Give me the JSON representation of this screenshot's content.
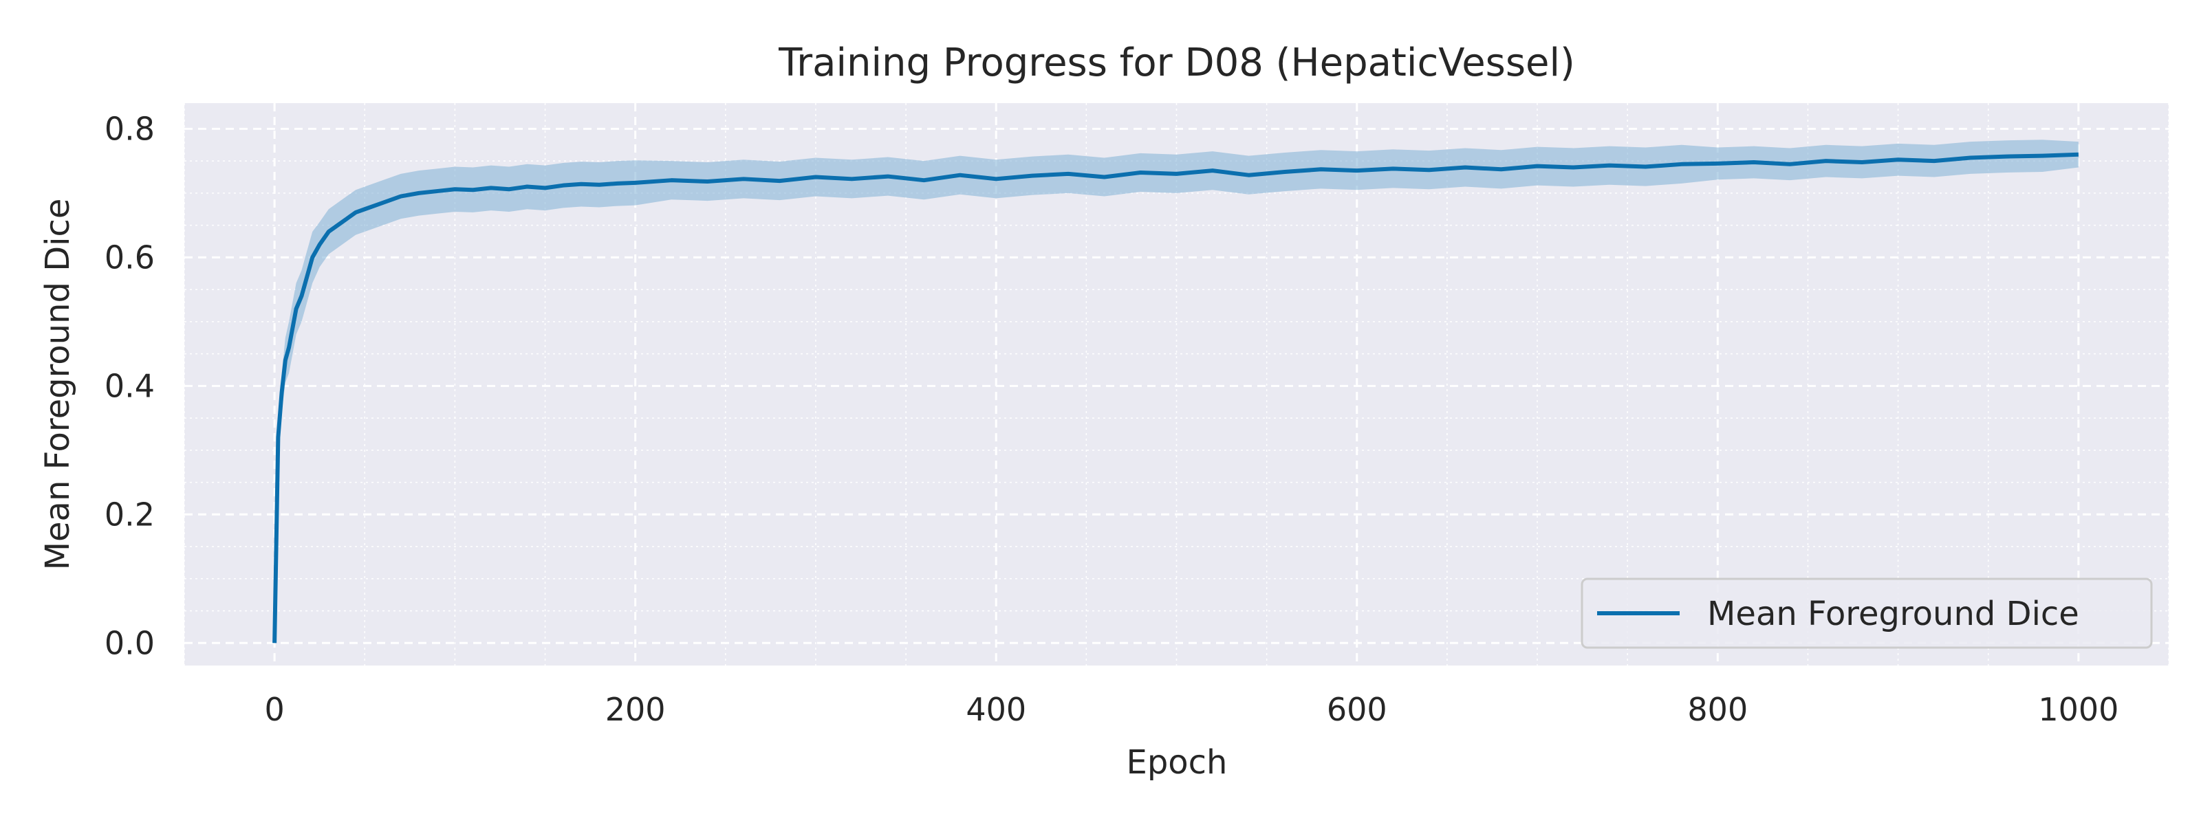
{
  "chart_data": {
    "type": "line",
    "title": "Training Progress for D08 (HepaticVessel)",
    "xlabel": "Epoch",
    "ylabel": "Mean Foreground Dice",
    "xlim": [
      -50,
      1050
    ],
    "ylim": [
      -0.035,
      0.84
    ],
    "xticks": [
      0,
      200,
      400,
      600,
      800,
      1000
    ],
    "xtick_labels": [
      "0",
      "200",
      "400",
      "600",
      "800",
      "1000"
    ],
    "yticks": [
      0.0,
      0.2,
      0.4,
      0.6,
      0.8
    ],
    "ytick_labels": [
      "0.0",
      "0.2",
      "0.4",
      "0.6",
      "0.8"
    ],
    "grid": true,
    "minor_grid": true,
    "legend_position": "lower-right",
    "series": [
      {
        "name": "Mean Foreground Dice",
        "color": "#0b6fae",
        "band_color": "#7fb1d6",
        "x": [
          0,
          2,
          4,
          6,
          8,
          10,
          12,
          15,
          18,
          21,
          25,
          30,
          35,
          40,
          45,
          50,
          60,
          70,
          80,
          90,
          100,
          110,
          120,
          130,
          140,
          150,
          160,
          170,
          180,
          190,
          200,
          220,
          240,
          260,
          280,
          300,
          320,
          340,
          360,
          380,
          400,
          420,
          440,
          460,
          480,
          500,
          520,
          540,
          560,
          580,
          600,
          620,
          640,
          660,
          680,
          700,
          720,
          740,
          760,
          780,
          800,
          820,
          840,
          860,
          880,
          900,
          920,
          940,
          960,
          980,
          1000
        ],
        "y": [
          0.0,
          0.32,
          0.39,
          0.44,
          0.46,
          0.49,
          0.52,
          0.54,
          0.57,
          0.6,
          0.62,
          0.64,
          0.65,
          0.66,
          0.67,
          0.675,
          0.685,
          0.695,
          0.7,
          0.703,
          0.706,
          0.705,
          0.708,
          0.706,
          0.71,
          0.708,
          0.712,
          0.714,
          0.713,
          0.715,
          0.716,
          0.72,
          0.718,
          0.722,
          0.719,
          0.725,
          0.722,
          0.726,
          0.72,
          0.728,
          0.722,
          0.727,
          0.73,
          0.725,
          0.732,
          0.73,
          0.735,
          0.728,
          0.733,
          0.737,
          0.735,
          0.738,
          0.736,
          0.74,
          0.737,
          0.742,
          0.74,
          0.743,
          0.741,
          0.745,
          0.746,
          0.748,
          0.745,
          0.75,
          0.748,
          0.752,
          0.75,
          0.755,
          0.757,
          0.758,
          0.76
        ],
        "spread": [
          0.0,
          0.02,
          0.03,
          0.035,
          0.04,
          0.04,
          0.04,
          0.04,
          0.04,
          0.04,
          0.035,
          0.035,
          0.035,
          0.035,
          0.035,
          0.035,
          0.035,
          0.035,
          0.035,
          0.035,
          0.035,
          0.035,
          0.035,
          0.035,
          0.035,
          0.035,
          0.035,
          0.035,
          0.035,
          0.035,
          0.035,
          0.03,
          0.03,
          0.03,
          0.03,
          0.03,
          0.03,
          0.03,
          0.03,
          0.03,
          0.03,
          0.03,
          0.03,
          0.03,
          0.03,
          0.03,
          0.03,
          0.03,
          0.03,
          0.03,
          0.03,
          0.03,
          0.03,
          0.03,
          0.03,
          0.03,
          0.03,
          0.03,
          0.03,
          0.03,
          0.025,
          0.025,
          0.025,
          0.025,
          0.025,
          0.025,
          0.025,
          0.025,
          0.025,
          0.025,
          0.02
        ]
      }
    ]
  }
}
